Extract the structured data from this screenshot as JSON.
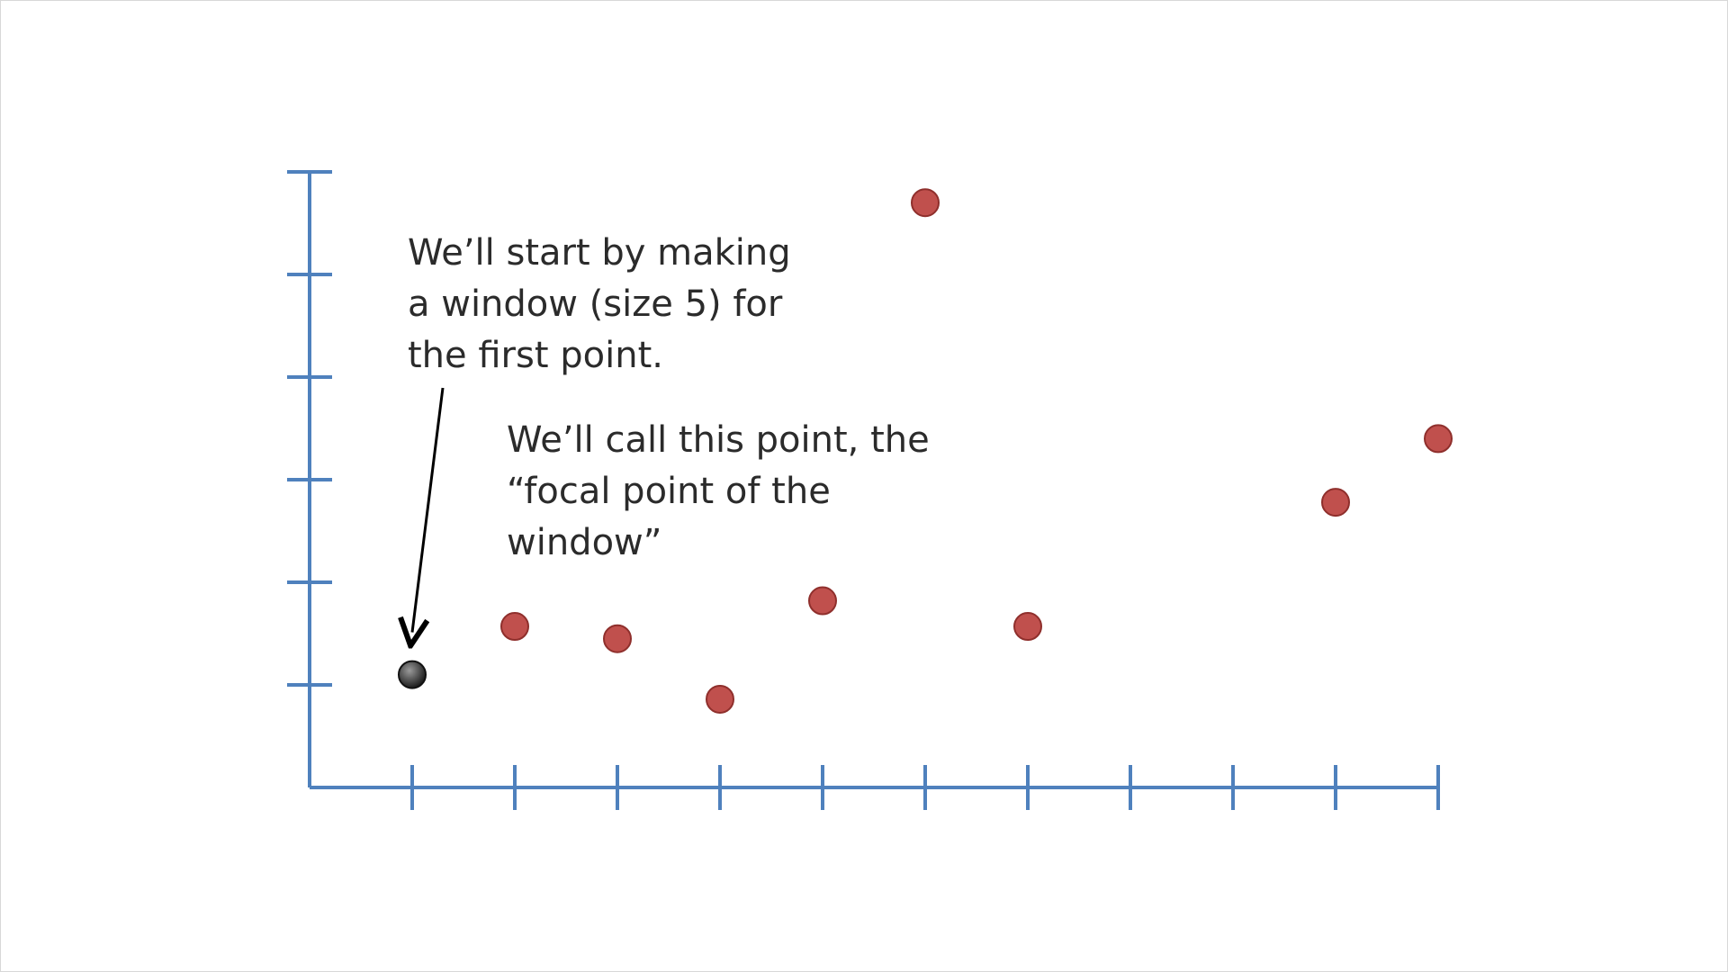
{
  "chart_data": {
    "type": "scatter",
    "title": "",
    "xlabel": "",
    "ylabel": "",
    "xlim": [
      0,
      11
    ],
    "ylim": [
      0,
      6
    ],
    "grid": false,
    "x_ticks": [
      1,
      2,
      3,
      4,
      5,
      6,
      7,
      8,
      9,
      10,
      11
    ],
    "y_ticks": [
      1,
      2,
      3,
      4,
      5,
      6
    ],
    "series": [
      {
        "role": "focal-point",
        "color": "#444444",
        "points": [
          {
            "x": 1,
            "y": 1.1
          }
        ]
      },
      {
        "role": "other-points",
        "color": "#c0504d",
        "points": [
          {
            "x": 2,
            "y": 1.57
          },
          {
            "x": 3,
            "y": 1.45
          },
          {
            "x": 4,
            "y": 0.86
          },
          {
            "x": 5,
            "y": 1.82
          },
          {
            "x": 6,
            "y": 5.7
          },
          {
            "x": 7,
            "y": 1.57
          },
          {
            "x": 10,
            "y": 2.78
          },
          {
            "x": 11,
            "y": 3.4
          }
        ]
      }
    ],
    "annotations": [
      {
        "text": "We’ll start by making\na window (size 5) for\nthe first point.",
        "arrow_to_x": 1,
        "arrow_to_y": 1.6
      },
      {
        "text": "We’ll call this point, the\n“focal point of the\nwindow”"
      }
    ]
  },
  "colors": {
    "axis": "#4f81bd",
    "point": "#c0504d",
    "focal": "#444444",
    "arrow": "#000000"
  }
}
